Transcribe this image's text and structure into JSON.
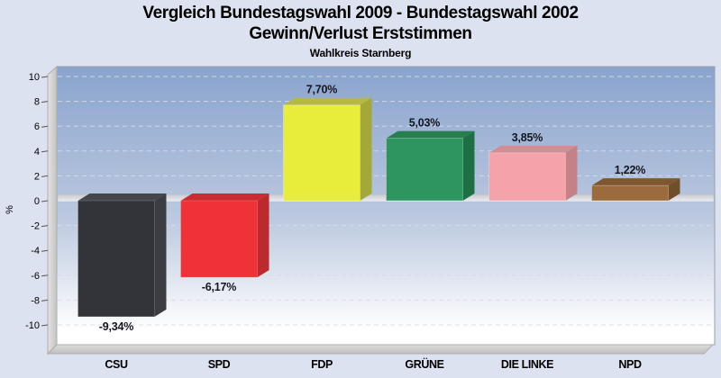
{
  "header": {
    "title_line1": "Vergleich Bundestagswahl 2009 - Bundestagswahl 2002",
    "title_line2": "Gewinn/Verlust Erststimmen",
    "subtitle": "Wahlkreis Starnberg"
  },
  "chart_data": {
    "type": "bar",
    "title": "Vergleich Bundestagswahl 2009 - Bundestagswahl 2002 Gewinn/Verlust Erststimmen",
    "subtitle": "Wahlkreis Starnberg",
    "categories": [
      "CSU",
      "SPD",
      "FDP",
      "GRÜNE",
      "DIE LINKE",
      "NPD"
    ],
    "values": [
      -9.34,
      -6.17,
      7.7,
      5.03,
      3.85,
      1.22
    ],
    "value_labels": [
      "-9,34%",
      "-6,17%",
      "7,70%",
      "5,03%",
      "3,85%",
      "1,22%"
    ],
    "xlabel": "",
    "ylabel": "%",
    "ylim": [
      -10,
      10
    ],
    "yticks": [
      10,
      8,
      6,
      4,
      2,
      0,
      -2,
      -4,
      -6,
      -8,
      -10
    ],
    "grid": "dashed-horizontal",
    "legend": "none",
    "style": "3d-block-bars",
    "bar_colors": [
      {
        "front": "#333439",
        "top": "#45464c",
        "side": "#3c3d43"
      },
      {
        "front": "#ee3237",
        "top": "#c92d32",
        "side": "#bb2a2f"
      },
      {
        "front": "#e8ed3b",
        "top": "#b5ba3d",
        "side": "#a3a838"
      },
      {
        "front": "#2e9560",
        "top": "#277e4f",
        "side": "#1f6f44"
      },
      {
        "front": "#f3a3a9",
        "top": "#d38d93",
        "side": "#c48188"
      },
      {
        "front": "#9c6b3c",
        "top": "#7e5730",
        "side": "#6f4e2b"
      }
    ],
    "palette": {
      "page_bg": "#dde2f1",
      "plot_gradient_top": "#8aa4ce",
      "plot_gradient_mid": "#bcc9e0",
      "plot_gradient_bottom": "#ffffff",
      "grid_color": "#d9dce3",
      "wall_light": "#e3e3e3",
      "wall_dark": "#c3c3c3",
      "zero_band_light": "#eceef2",
      "zero_band_dark": "#c6c9d0",
      "value_label_color": "#16161f",
      "axis_text_color": "#000000"
    }
  }
}
